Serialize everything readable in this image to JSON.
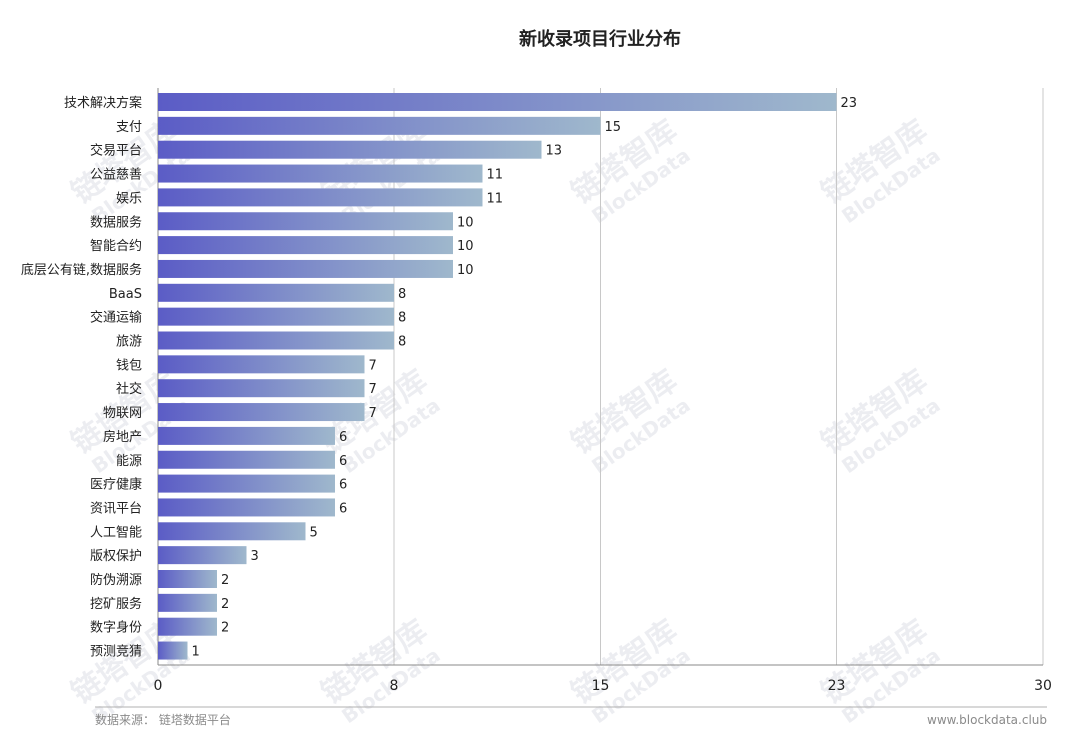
{
  "chart_data": {
    "type": "bar",
    "orientation": "horizontal",
    "title": "新收录项目行业分布",
    "categories": [
      "技术解决方案",
      "支付",
      "交易平台",
      "公益慈善",
      "娱乐",
      "数据服务",
      "智能合约",
      "底层公有链,数据服务",
      "BaaS",
      "交通运输",
      "旅游",
      "钱包",
      "社交",
      "物联网",
      "房地产",
      "能源",
      "医疗健康",
      "资讯平台",
      "人工智能",
      "版权保护",
      "防伪溯源",
      "挖矿服务",
      "数字身份",
      "预测竞猜"
    ],
    "values": [
      23,
      15,
      13,
      11,
      11,
      10,
      10,
      10,
      8,
      8,
      8,
      7,
      7,
      7,
      6,
      6,
      6,
      6,
      5,
      3,
      2,
      2,
      2,
      1
    ],
    "xticks": [
      0,
      8,
      15,
      23,
      30
    ],
    "xlim": [
      0,
      30
    ],
    "grid": true,
    "colors": {
      "bar_start": "#5b5cc6",
      "bar_end": "#9fb8cc",
      "grid": "#c8c8c8",
      "axis": "#888888"
    }
  },
  "footer": {
    "source": "数据来源： 链塔数据平台",
    "website": "www.blockdata.club"
  },
  "watermark": {
    "text_cn": "链塔智库",
    "text_en": "BlockData",
    "icon": "blockdata-logo-icon"
  }
}
